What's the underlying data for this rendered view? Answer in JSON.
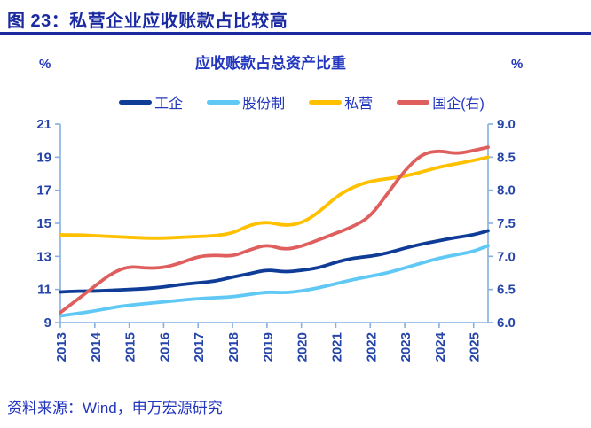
{
  "header": {
    "title": "图 23：私营企业应收账款占比较高"
  },
  "chart": {
    "title": "应收账款占总资产比重",
    "left_unit": "%",
    "right_unit": "%"
  },
  "source": {
    "text": "资料来源：Wind，申万宏源研究"
  },
  "colors": {
    "header_blue": "#1b2aa1",
    "text_blue": "#2336be",
    "tick_label_blue": "#2545a9",
    "axis_line_blue": "#85b0e0"
  },
  "chart_data": {
    "type": "line",
    "title": "应收账款占总资产比重",
    "legend_position": "top",
    "grid": false,
    "x_min": 2013,
    "x_max": 2025.42,
    "x_tick_labels": [
      "2013",
      "2014",
      "2015",
      "2016",
      "2017",
      "2018",
      "2019",
      "2020",
      "2021",
      "2022",
      "2023",
      "2024",
      "2025"
    ],
    "left_axis": {
      "unit": "%",
      "min": 9,
      "max": 21,
      "ticks": [
        "21",
        "19",
        "17",
        "15",
        "13",
        "11",
        "9"
      ]
    },
    "right_axis": {
      "unit": "%",
      "min": 6,
      "max": 9,
      "ticks": [
        "9.0",
        "8.5",
        "8.0",
        "7.5",
        "7.0",
        "6.5",
        "6.0"
      ]
    },
    "x": [
      2013,
      2013.5,
      2014,
      2014.5,
      2015,
      2015.5,
      2016,
      2016.5,
      2017,
      2017.5,
      2018,
      2018.5,
      2019,
      2019.5,
      2020,
      2020.5,
      2021,
      2021.5,
      2022,
      2022.5,
      2023,
      2023.5,
      2024,
      2024.5,
      2025,
      2025.42
    ],
    "series": [
      {
        "name": "工企",
        "axis": "left",
        "color": "#0e3c96",
        "values": [
          10.85,
          10.9,
          10.9,
          10.95,
          11.0,
          11.05,
          11.15,
          11.3,
          11.4,
          11.5,
          11.75,
          11.95,
          12.2,
          12.05,
          12.15,
          12.3,
          12.65,
          12.9,
          13.0,
          13.2,
          13.5,
          13.75,
          13.95,
          14.15,
          14.3,
          14.55
        ]
      },
      {
        "name": "股份制",
        "axis": "left",
        "color": "#5fc8f4",
        "values": [
          9.4,
          9.55,
          9.7,
          9.9,
          10.05,
          10.15,
          10.25,
          10.35,
          10.45,
          10.5,
          10.55,
          10.7,
          10.85,
          10.8,
          10.9,
          11.1,
          11.35,
          11.6,
          11.8,
          12.0,
          12.3,
          12.6,
          12.9,
          13.1,
          13.3,
          13.65
        ]
      },
      {
        "name": "私营",
        "axis": "left",
        "color": "#ffc000",
        "values": [
          14.3,
          14.3,
          14.25,
          14.2,
          14.15,
          14.1,
          14.1,
          14.15,
          14.2,
          14.25,
          14.4,
          14.9,
          15.1,
          14.85,
          15.0,
          15.65,
          16.6,
          17.2,
          17.55,
          17.7,
          17.85,
          18.1,
          18.4,
          18.6,
          18.8,
          19.0
        ]
      },
      {
        "name": "国企(右)",
        "axis": "right",
        "color": "#df5f5f",
        "values": [
          6.15,
          6.35,
          6.55,
          6.75,
          6.85,
          6.82,
          6.83,
          6.9,
          7.0,
          7.02,
          7.0,
          7.1,
          7.18,
          7.1,
          7.15,
          7.25,
          7.35,
          7.45,
          7.6,
          7.95,
          8.3,
          8.55,
          8.6,
          8.55,
          8.6,
          8.65
        ]
      }
    ]
  }
}
